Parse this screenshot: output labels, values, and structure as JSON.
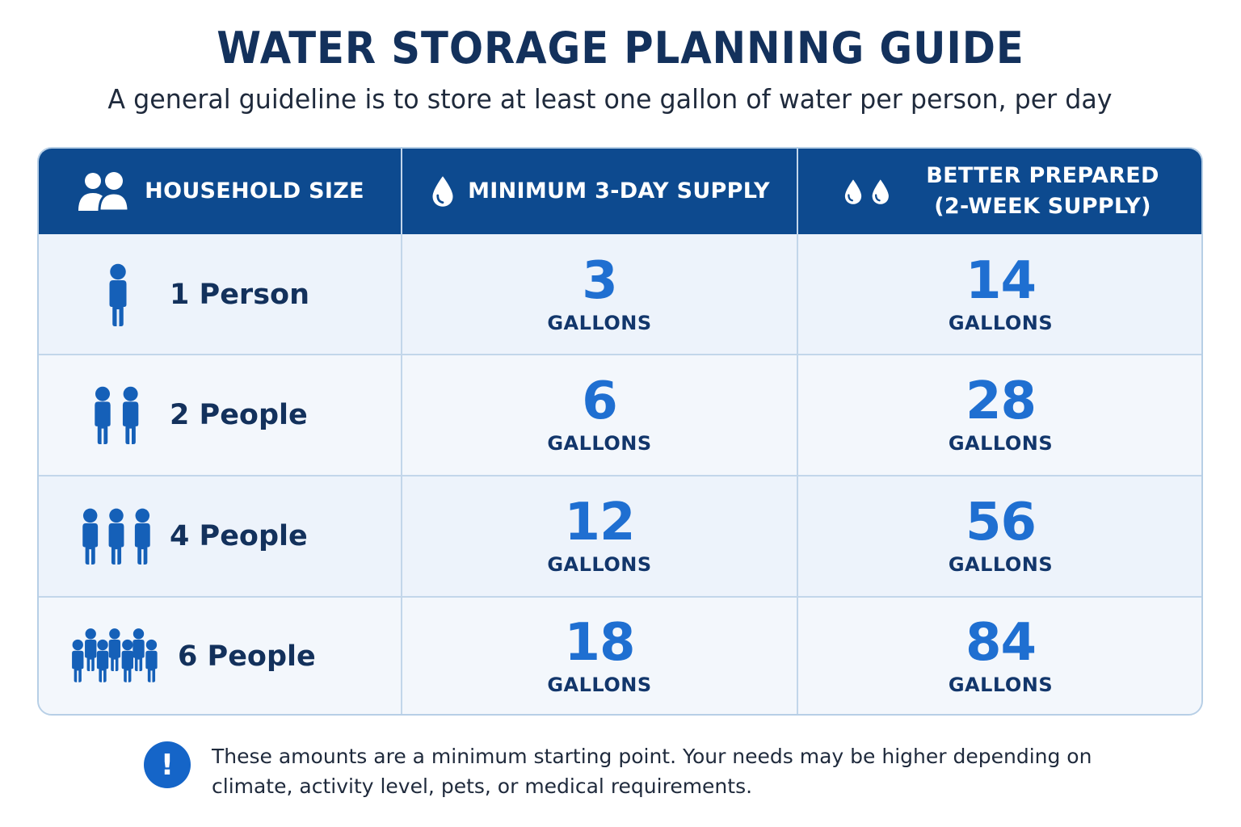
{
  "title": "WATER STORAGE PLANNING GUIDE",
  "subtitle": "A general guideline is to store at least one gallon of water per person, per day",
  "colors": {
    "header_bg": "#0d4a8f",
    "number": "#1f6fd1",
    "icon": "#1560b8",
    "title": "#13315c"
  },
  "table": {
    "headers": [
      {
        "icon": "people-icon",
        "label": "HOUSEHOLD SIZE"
      },
      {
        "icon": "water-drop-icon",
        "label": "MINIMUM 3-DAY SUPPLY"
      },
      {
        "icon": "two-water-drops-icon",
        "label_line1": "BETTER PREPARED",
        "label_line2": "(2-WEEK SUPPLY)"
      }
    ],
    "rows": [
      {
        "icon": "one-person-icon",
        "household": "1 Person",
        "min": "3",
        "min_unit": "GALLONS",
        "better": "14",
        "better_unit": "GALLONS"
      },
      {
        "icon": "two-people-icon",
        "household": "2 People",
        "min": "6",
        "min_unit": "GALLONS",
        "better": "28",
        "better_unit": "GALLONS"
      },
      {
        "icon": "four-people-icon",
        "household": "4 People",
        "min": "12",
        "min_unit": "GALLONS",
        "better": "56",
        "better_unit": "GALLONS"
      },
      {
        "icon": "six-people-icon",
        "household": "6 People",
        "min": "18",
        "min_unit": "GALLONS",
        "better": "84",
        "better_unit": "GALLONS"
      }
    ]
  },
  "note": {
    "icon": "exclamation-icon",
    "symbol": "!",
    "line1": "These amounts are a minimum starting point. Your needs may be higher depending on",
    "line2": "climate, activity level, pets, or medical requirements."
  }
}
